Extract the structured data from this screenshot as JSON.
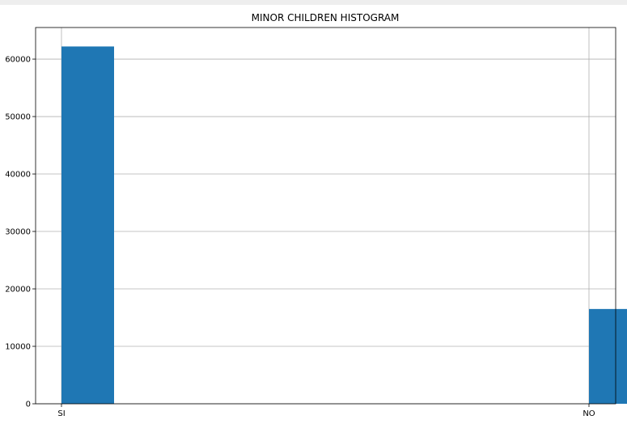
{
  "chart_data": {
    "type": "bar",
    "title": "MINOR CHILDREN HISTOGRAM",
    "xlabel": "",
    "ylabel": "",
    "categories": [
      "SI",
      "NO"
    ],
    "values": [
      62200,
      16500
    ],
    "ylim": [
      0,
      65500
    ],
    "y_ticks": [
      0,
      10000,
      20000,
      30000,
      40000,
      50000,
      60000
    ],
    "grid": true,
    "bar_color": "#1f77b4",
    "legend": "none"
  }
}
